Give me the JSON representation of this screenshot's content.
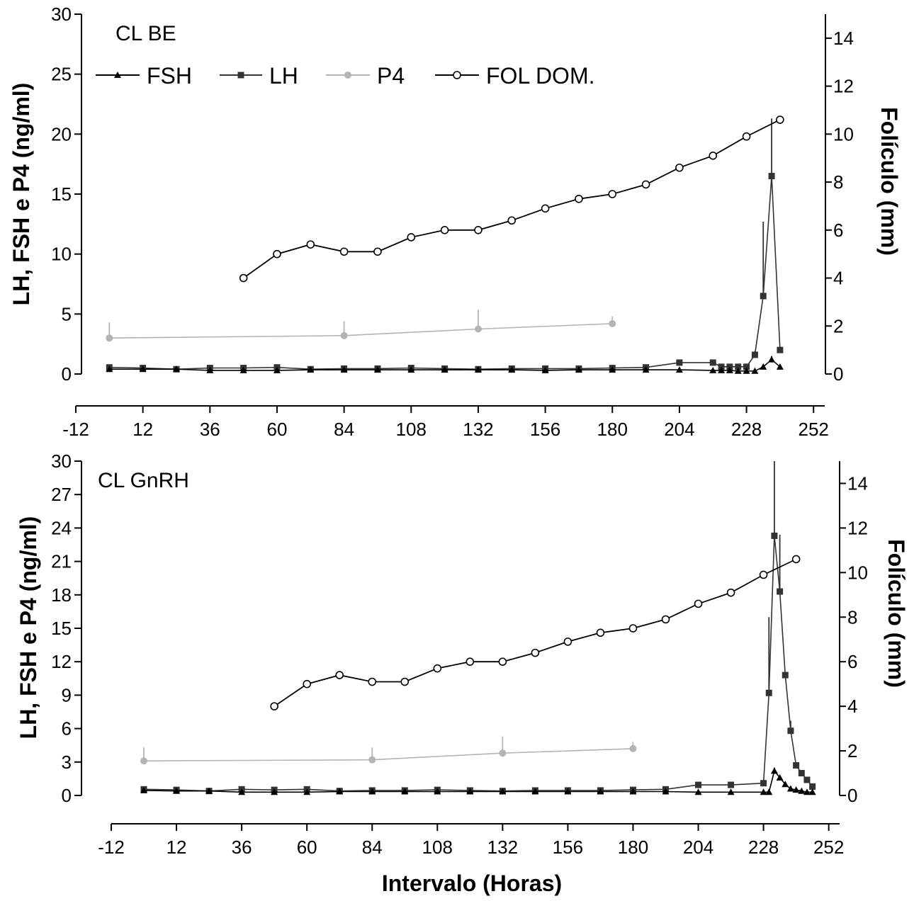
{
  "colors": {
    "fsh": "#000000",
    "lh": "#333333",
    "p4": "#b4b4b4",
    "fol": "#000000",
    "axis": "#000000"
  },
  "legend": {
    "fsh": "FSH",
    "lh": "LH",
    "p4": "P4",
    "fol": "FOL DOM."
  },
  "x_axis_title": "Intervalo (Horas)",
  "chart_data": [
    {
      "type": "line",
      "panel_label": "CL BE",
      "ylabel_left": "LH, FSH e P4 (ng/ml)",
      "ylabel_right": "Folículo (mm)",
      "xlim": [
        -12,
        256
      ],
      "xticks": [
        -12,
        12,
        36,
        60,
        84,
        108,
        132,
        156,
        180,
        204,
        228,
        252
      ],
      "xtick_labels": [
        "-12",
        "12",
        "36",
        "60",
        "84",
        "108",
        "132",
        "156",
        "180",
        "204",
        "228",
        "252"
      ],
      "ylim_left": [
        0,
        30
      ],
      "yticks_left": [
        0,
        5,
        10,
        15,
        20,
        25,
        30
      ],
      "ytick_labels_left": [
        "0",
        "5",
        "10",
        "15",
        "20",
        "25",
        "30"
      ],
      "ylim_right": [
        0,
        15
      ],
      "yticks_right": [
        0,
        2,
        4,
        6,
        8,
        10,
        12,
        14
      ],
      "ytick_labels_right": [
        "0",
        "2",
        "4",
        "6",
        "8",
        "10",
        "12",
        "14"
      ],
      "series": [
        {
          "key": "p4",
          "name": "P4",
          "marker": "circle-filled",
          "axis": "left",
          "x": [
            0,
            84,
            132,
            180
          ],
          "y": [
            3.0,
            3.2,
            3.75,
            4.2
          ],
          "err": [
            1.3,
            1.2,
            1.6,
            0.6
          ]
        },
        {
          "key": "lh",
          "name": "LH",
          "marker": "square",
          "axis": "left",
          "x": [
            0,
            12,
            24,
            36,
            48,
            60,
            72,
            84,
            96,
            108,
            120,
            132,
            144,
            156,
            168,
            180,
            192,
            204,
            216,
            219,
            222,
            225,
            228,
            231,
            234,
            237,
            240
          ],
          "y": [
            0.55,
            0.5,
            0.4,
            0.5,
            0.5,
            0.55,
            0.4,
            0.45,
            0.45,
            0.5,
            0.45,
            0.4,
            0.45,
            0.45,
            0.45,
            0.5,
            0.55,
            0.95,
            0.95,
            0.6,
            0.6,
            0.6,
            0.6,
            1.6,
            6.5,
            16.5,
            2.0
          ],
          "err": [
            0,
            0,
            0,
            0,
            0,
            0.15,
            0,
            0,
            0,
            0,
            0,
            0,
            0,
            0,
            0,
            0,
            0,
            0,
            0,
            0,
            0,
            0,
            0,
            0.3,
            6.2,
            4.8,
            0.3
          ]
        },
        {
          "key": "fsh",
          "name": "FSH",
          "marker": "triangle",
          "axis": "left",
          "x": [
            0,
            12,
            24,
            36,
            48,
            60,
            72,
            84,
            96,
            108,
            120,
            132,
            144,
            156,
            168,
            180,
            192,
            204,
            216,
            219,
            222,
            225,
            228,
            231,
            234,
            237,
            240
          ],
          "y": [
            0.4,
            0.4,
            0.4,
            0.3,
            0.3,
            0.3,
            0.35,
            0.35,
            0.35,
            0.35,
            0.35,
            0.35,
            0.35,
            0.3,
            0.35,
            0.35,
            0.35,
            0.35,
            0.3,
            0.3,
            0.3,
            0.25,
            0.25,
            0.25,
            0.6,
            1.2,
            0.6
          ],
          "err": [
            0,
            0,
            0,
            0,
            0,
            0,
            0,
            0,
            0,
            0,
            0,
            0,
            0,
            0,
            0,
            0,
            0,
            0,
            0,
            0,
            0,
            0,
            0,
            0,
            0,
            0.3,
            0
          ]
        },
        {
          "key": "fol",
          "name": "FOL DOM.",
          "marker": "circle-open",
          "axis": "right",
          "x": [
            48,
            60,
            72,
            84,
            96,
            108,
            120,
            132,
            144,
            156,
            168,
            180,
            192,
            204,
            216,
            228,
            240
          ],
          "y": [
            4.0,
            5.0,
            5.4,
            5.1,
            5.1,
            5.7,
            6.0,
            6.0,
            6.4,
            6.9,
            7.3,
            7.5,
            7.9,
            8.6,
            9.1,
            9.9,
            10.6
          ],
          "err": []
        }
      ]
    },
    {
      "type": "line",
      "panel_label": "CL GnRH",
      "ylabel_left": "LH, FSH e P4 (ng/ml)",
      "ylabel_right": "Folículo (mm)",
      "xlim": [
        -12,
        256
      ],
      "xticks": [
        -12,
        12,
        36,
        60,
        84,
        108,
        132,
        156,
        180,
        204,
        228,
        252
      ],
      "xtick_labels": [
        "-12",
        "12",
        "36",
        "60",
        "84",
        "108",
        "132",
        "156",
        "180",
        "204",
        "228",
        "252"
      ],
      "ylim_left": [
        0,
        30
      ],
      "yticks_left": [
        0,
        3,
        6,
        9,
        12,
        15,
        18,
        21,
        24,
        27,
        30
      ],
      "ytick_labels_left": [
        "0",
        "3",
        "6",
        "9",
        "12",
        "15",
        "18",
        "21",
        "24",
        "27",
        "30"
      ],
      "ylim_right": [
        0,
        15
      ],
      "yticks_right": [
        0,
        2,
        4,
        6,
        8,
        10,
        12,
        14
      ],
      "ytick_labels_right": [
        "0",
        "2",
        "4",
        "6",
        "8",
        "10",
        "12",
        "14"
      ],
      "series": [
        {
          "key": "p4",
          "name": "P4",
          "marker": "circle-filled",
          "axis": "left",
          "x": [
            0,
            84,
            132,
            180
          ],
          "y": [
            3.1,
            3.2,
            3.8,
            4.2
          ],
          "err": [
            1.2,
            1.1,
            1.5,
            0.6
          ]
        },
        {
          "key": "lh",
          "name": "LH",
          "marker": "square",
          "axis": "left",
          "x": [
            0,
            12,
            24,
            36,
            48,
            60,
            72,
            84,
            96,
            108,
            120,
            132,
            144,
            156,
            168,
            180,
            192,
            204,
            216,
            228,
            230,
            232,
            234,
            236,
            238,
            240,
            242,
            244,
            246
          ],
          "y": [
            0.55,
            0.5,
            0.4,
            0.55,
            0.5,
            0.55,
            0.4,
            0.45,
            0.45,
            0.5,
            0.45,
            0.4,
            0.45,
            0.45,
            0.45,
            0.5,
            0.55,
            0.95,
            0.95,
            1.1,
            9.2,
            23.3,
            18.3,
            10.8,
            5.8,
            2.7,
            2.0,
            1.4,
            0.8
          ],
          "err": [
            0,
            0,
            0,
            0,
            0,
            0.15,
            0,
            0,
            0,
            0,
            0,
            0,
            0,
            0,
            0,
            0,
            0,
            0,
            0,
            0,
            6.8,
            6.7,
            5.1,
            0,
            0.9,
            0,
            0,
            0,
            0
          ]
        },
        {
          "key": "fsh",
          "name": "FSH",
          "marker": "triangle",
          "axis": "left",
          "x": [
            0,
            12,
            24,
            36,
            48,
            60,
            72,
            84,
            96,
            108,
            120,
            132,
            144,
            156,
            168,
            180,
            192,
            204,
            216,
            228,
            230,
            232,
            234,
            236,
            238,
            240,
            242,
            244,
            246
          ],
          "y": [
            0.45,
            0.4,
            0.4,
            0.3,
            0.3,
            0.3,
            0.35,
            0.35,
            0.35,
            0.35,
            0.35,
            0.35,
            0.35,
            0.35,
            0.35,
            0.35,
            0.35,
            0.3,
            0.3,
            0.3,
            0.3,
            2.2,
            1.6,
            1.0,
            0.6,
            0.5,
            0.4,
            0.3,
            0.3
          ],
          "err": [
            0,
            0,
            0,
            0,
            0,
            0,
            0,
            0,
            0,
            0,
            0,
            0,
            0,
            0,
            0,
            0,
            0,
            0,
            0,
            0,
            0,
            0.3,
            0,
            0,
            0,
            0,
            0,
            0,
            0
          ]
        },
        {
          "key": "fol",
          "name": "FOL DOM.",
          "marker": "circle-open",
          "axis": "right",
          "x": [
            48,
            60,
            72,
            84,
            96,
            108,
            120,
            132,
            144,
            156,
            168,
            180,
            192,
            204,
            216,
            228,
            240
          ],
          "y": [
            4.0,
            5.0,
            5.4,
            5.1,
            5.1,
            5.7,
            6.0,
            6.0,
            6.4,
            6.9,
            7.3,
            7.5,
            7.9,
            8.6,
            9.1,
            9.9,
            10.6
          ],
          "err": []
        }
      ]
    }
  ]
}
